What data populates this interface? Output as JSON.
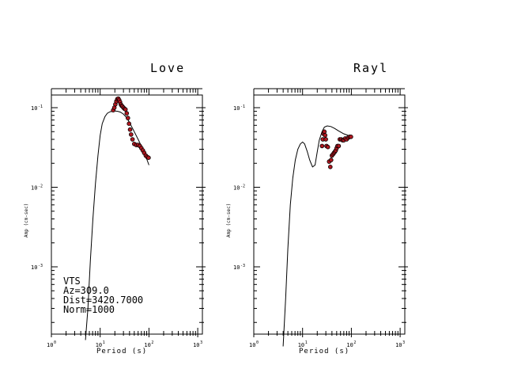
{
  "chart_data": [
    {
      "type": "line",
      "title": "Love",
      "xlabel": "Period (s)",
      "ylabel": "Amp (cm-sec)",
      "x_scale": "log",
      "y_scale": "log",
      "xlim": [
        1,
        1000
      ],
      "ylim": [
        0.0001,
        0.2
      ],
      "x_ticks": [
        {
          "base": "10",
          "exp": "0"
        },
        {
          "base": "10",
          "exp": "1"
        },
        {
          "base": "10",
          "exp": "2"
        },
        {
          "base": "10",
          "exp": "3"
        }
      ],
      "y_ticks": [
        {
          "base": "10",
          "exp": "-1"
        },
        {
          "base": "10",
          "exp": "-2"
        },
        {
          "base": "10",
          "exp": "-3"
        }
      ],
      "annotation": [
        "VTS",
        "Az=309.0",
        "Dist=3420.7000",
        "Norm=1000"
      ],
      "series": [
        {
          "kind": "line",
          "x": [
            5.0,
            5.6,
            6.3,
            7.1,
            8.0,
            9.0,
            10.0,
            11.0,
            12.5,
            14.0,
            16.0,
            18.0,
            20.0,
            23.0,
            26.0,
            30.0,
            35.0,
            40.0,
            50.0,
            60.0,
            70.0,
            85.0,
            100.0
          ],
          "y": [
            0.00012,
            0.0003,
            0.0012,
            0.004,
            0.011,
            0.025,
            0.045,
            0.063,
            0.077,
            0.085,
            0.089,
            0.09,
            0.091,
            0.09,
            0.088,
            0.083,
            0.075,
            0.065,
            0.05,
            0.04,
            0.033,
            0.025,
            0.019
          ]
        },
        {
          "kind": "points",
          "x": [
            18.5,
            19.5,
            20.5,
            21.5,
            22.5,
            23.5,
            24.5,
            25.5,
            26.5,
            27.5,
            28.5,
            30.0,
            31.5,
            33.0,
            35.0,
            37.0,
            39.0,
            41.0,
            43.0,
            46.0,
            50.0,
            55.0,
            60.0,
            65.0,
            70.0,
            75.0,
            80.0,
            86.0,
            92.0,
            98.0
          ],
          "y": [
            0.093,
            0.1,
            0.11,
            0.12,
            0.128,
            0.13,
            0.125,
            0.118,
            0.11,
            0.106,
            0.104,
            0.1,
            0.097,
            0.095,
            0.085,
            0.074,
            0.063,
            0.053,
            0.046,
            0.04,
            0.035,
            0.034,
            0.034,
            0.033,
            0.031,
            0.029,
            0.027,
            0.025,
            0.024,
            0.0235
          ]
        }
      ]
    },
    {
      "type": "line",
      "title": "Rayl",
      "xlabel": "Period (s)",
      "ylabel": "Amp (cm-sec)",
      "x_scale": "log",
      "y_scale": "log",
      "xlim": [
        1,
        1000
      ],
      "ylim": [
        0.0001,
        0.2
      ],
      "x_ticks": [
        {
          "base": "10",
          "exp": "0"
        },
        {
          "base": "10",
          "exp": "1"
        },
        {
          "base": "10",
          "exp": "2"
        },
        {
          "base": "10",
          "exp": "3"
        }
      ],
      "y_ticks": [
        {
          "base": "10",
          "exp": "-1"
        },
        {
          "base": "10",
          "exp": "-2"
        },
        {
          "base": "10",
          "exp": "-3"
        }
      ],
      "annotation": [],
      "series": [
        {
          "kind": "line",
          "x": [
            4.0,
            4.5,
            5.0,
            5.6,
            6.3,
            7.1,
            8.0,
            9.0,
            10.0,
            11.0,
            12.5,
            14.0,
            16.0,
            18.0,
            20.0,
            22.0,
            25.0,
            28.0,
            32.0,
            38.0,
            45.0,
            55.0,
            70.0,
            85.0,
            100.0
          ],
          "y": [
            0.0001,
            0.0004,
            0.0017,
            0.006,
            0.013,
            0.022,
            0.03,
            0.035,
            0.037,
            0.035,
            0.028,
            0.022,
            0.018,
            0.019,
            0.028,
            0.039,
            0.05,
            0.057,
            0.059,
            0.058,
            0.055,
            0.051,
            0.047,
            0.045,
            0.044
          ]
        },
        {
          "kind": "points",
          "x": [
            25.0,
            26.0,
            27.0,
            28.0,
            29.0,
            30.0,
            31.0,
            33.0,
            35.0,
            37.0,
            38.5,
            40.0,
            42.0,
            44.0,
            46.0,
            48.0,
            50.0,
            52.0,
            55.0,
            58.0,
            62.0,
            66.0,
            70.0,
            75.0,
            80.0,
            86.0,
            92.0,
            98.0
          ],
          "y": [
            0.033,
            0.04,
            0.047,
            0.05,
            0.045,
            0.04,
            0.033,
            0.032,
            0.021,
            0.018,
            0.022,
            0.025,
            0.026,
            0.027,
            0.028,
            0.029,
            0.031,
            0.033,
            0.033,
            0.04,
            0.04,
            0.039,
            0.039,
            0.041,
            0.04,
            0.042,
            0.043,
            0.043
          ]
        }
      ]
    }
  ]
}
